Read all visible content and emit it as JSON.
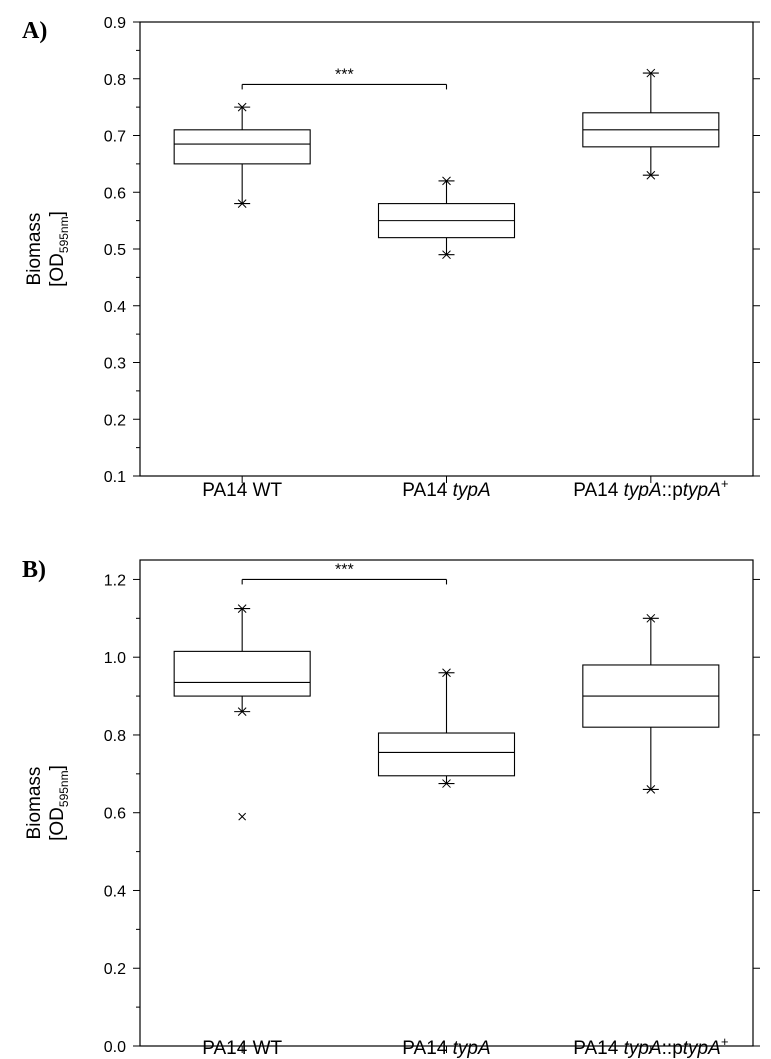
{
  "chart_data": [
    {
      "type": "box",
      "panel_label": "A)",
      "ylabel": "Biomass",
      "ylabel_unit_main": "[OD",
      "ylabel_unit_sub": "595nm",
      "ylabel_unit_end": "]",
      "ylim": [
        0.1,
        0.9
      ],
      "yticks": [
        "0.1",
        "0.2",
        "0.3",
        "0.4",
        "0.5",
        "0.6",
        "0.7",
        "0.8",
        "0.9"
      ],
      "categories": [
        {
          "parts": [
            {
              "t": "PA14 WT",
              "i": false
            }
          ]
        },
        {
          "parts": [
            {
              "t": "PA14 ",
              "i": false
            },
            {
              "t": "typA",
              "i": true
            }
          ]
        },
        {
          "parts": [
            {
              "t": "PA14 ",
              "i": false
            },
            {
              "t": "typA",
              "i": true
            },
            {
              "t": "::p",
              "i": false
            },
            {
              "t": "typA",
              "i": true
            },
            {
              "t": "+",
              "i": false,
              "sup": true
            }
          ]
        }
      ],
      "boxes": [
        {
          "min": 0.58,
          "q1": 0.65,
          "median": 0.685,
          "q3": 0.71,
          "max": 0.75,
          "outliers": []
        },
        {
          "min": 0.49,
          "q1": 0.52,
          "median": 0.55,
          "q3": 0.58,
          "max": 0.62,
          "outliers": []
        },
        {
          "min": 0.63,
          "q1": 0.68,
          "median": 0.71,
          "q3": 0.74,
          "max": 0.81,
          "outliers": []
        }
      ],
      "significance": {
        "from": 0,
        "to": 1,
        "y": 0.79,
        "label": "***"
      }
    },
    {
      "type": "box",
      "panel_label": "B)",
      "ylabel": "Biomass",
      "ylabel_unit_main": "[OD",
      "ylabel_unit_sub": "595nm",
      "ylabel_unit_end": "]",
      "ylim": [
        0.0,
        1.25
      ],
      "yticks": [
        "0.0",
        "0.2",
        "0.4",
        "0.6",
        "0.8",
        "1.0",
        "1.2"
      ],
      "categories": [
        {
          "parts": [
            {
              "t": "PA14 WT",
              "i": false
            }
          ]
        },
        {
          "parts": [
            {
              "t": "PA14 ",
              "i": false
            },
            {
              "t": "typA",
              "i": true
            }
          ]
        },
        {
          "parts": [
            {
              "t": "PA14 ",
              "i": false
            },
            {
              "t": "typA",
              "i": true
            },
            {
              "t": "::p",
              "i": false
            },
            {
              "t": "typA",
              "i": true
            },
            {
              "t": "+",
              "i": false,
              "sup": true
            }
          ]
        }
      ],
      "boxes": [
        {
          "min": 0.86,
          "q1": 0.9,
          "median": 0.935,
          "q3": 1.015,
          "max": 1.125,
          "outliers": [
            0.59
          ]
        },
        {
          "min": 0.675,
          "q1": 0.695,
          "median": 0.755,
          "q3": 0.805,
          "max": 0.96,
          "outliers": []
        },
        {
          "min": 0.66,
          "q1": 0.82,
          "median": 0.9,
          "q3": 0.98,
          "max": 1.1,
          "outliers": []
        }
      ],
      "significance": {
        "from": 0,
        "to": 1,
        "y": 1.2,
        "label": "***"
      }
    }
  ]
}
